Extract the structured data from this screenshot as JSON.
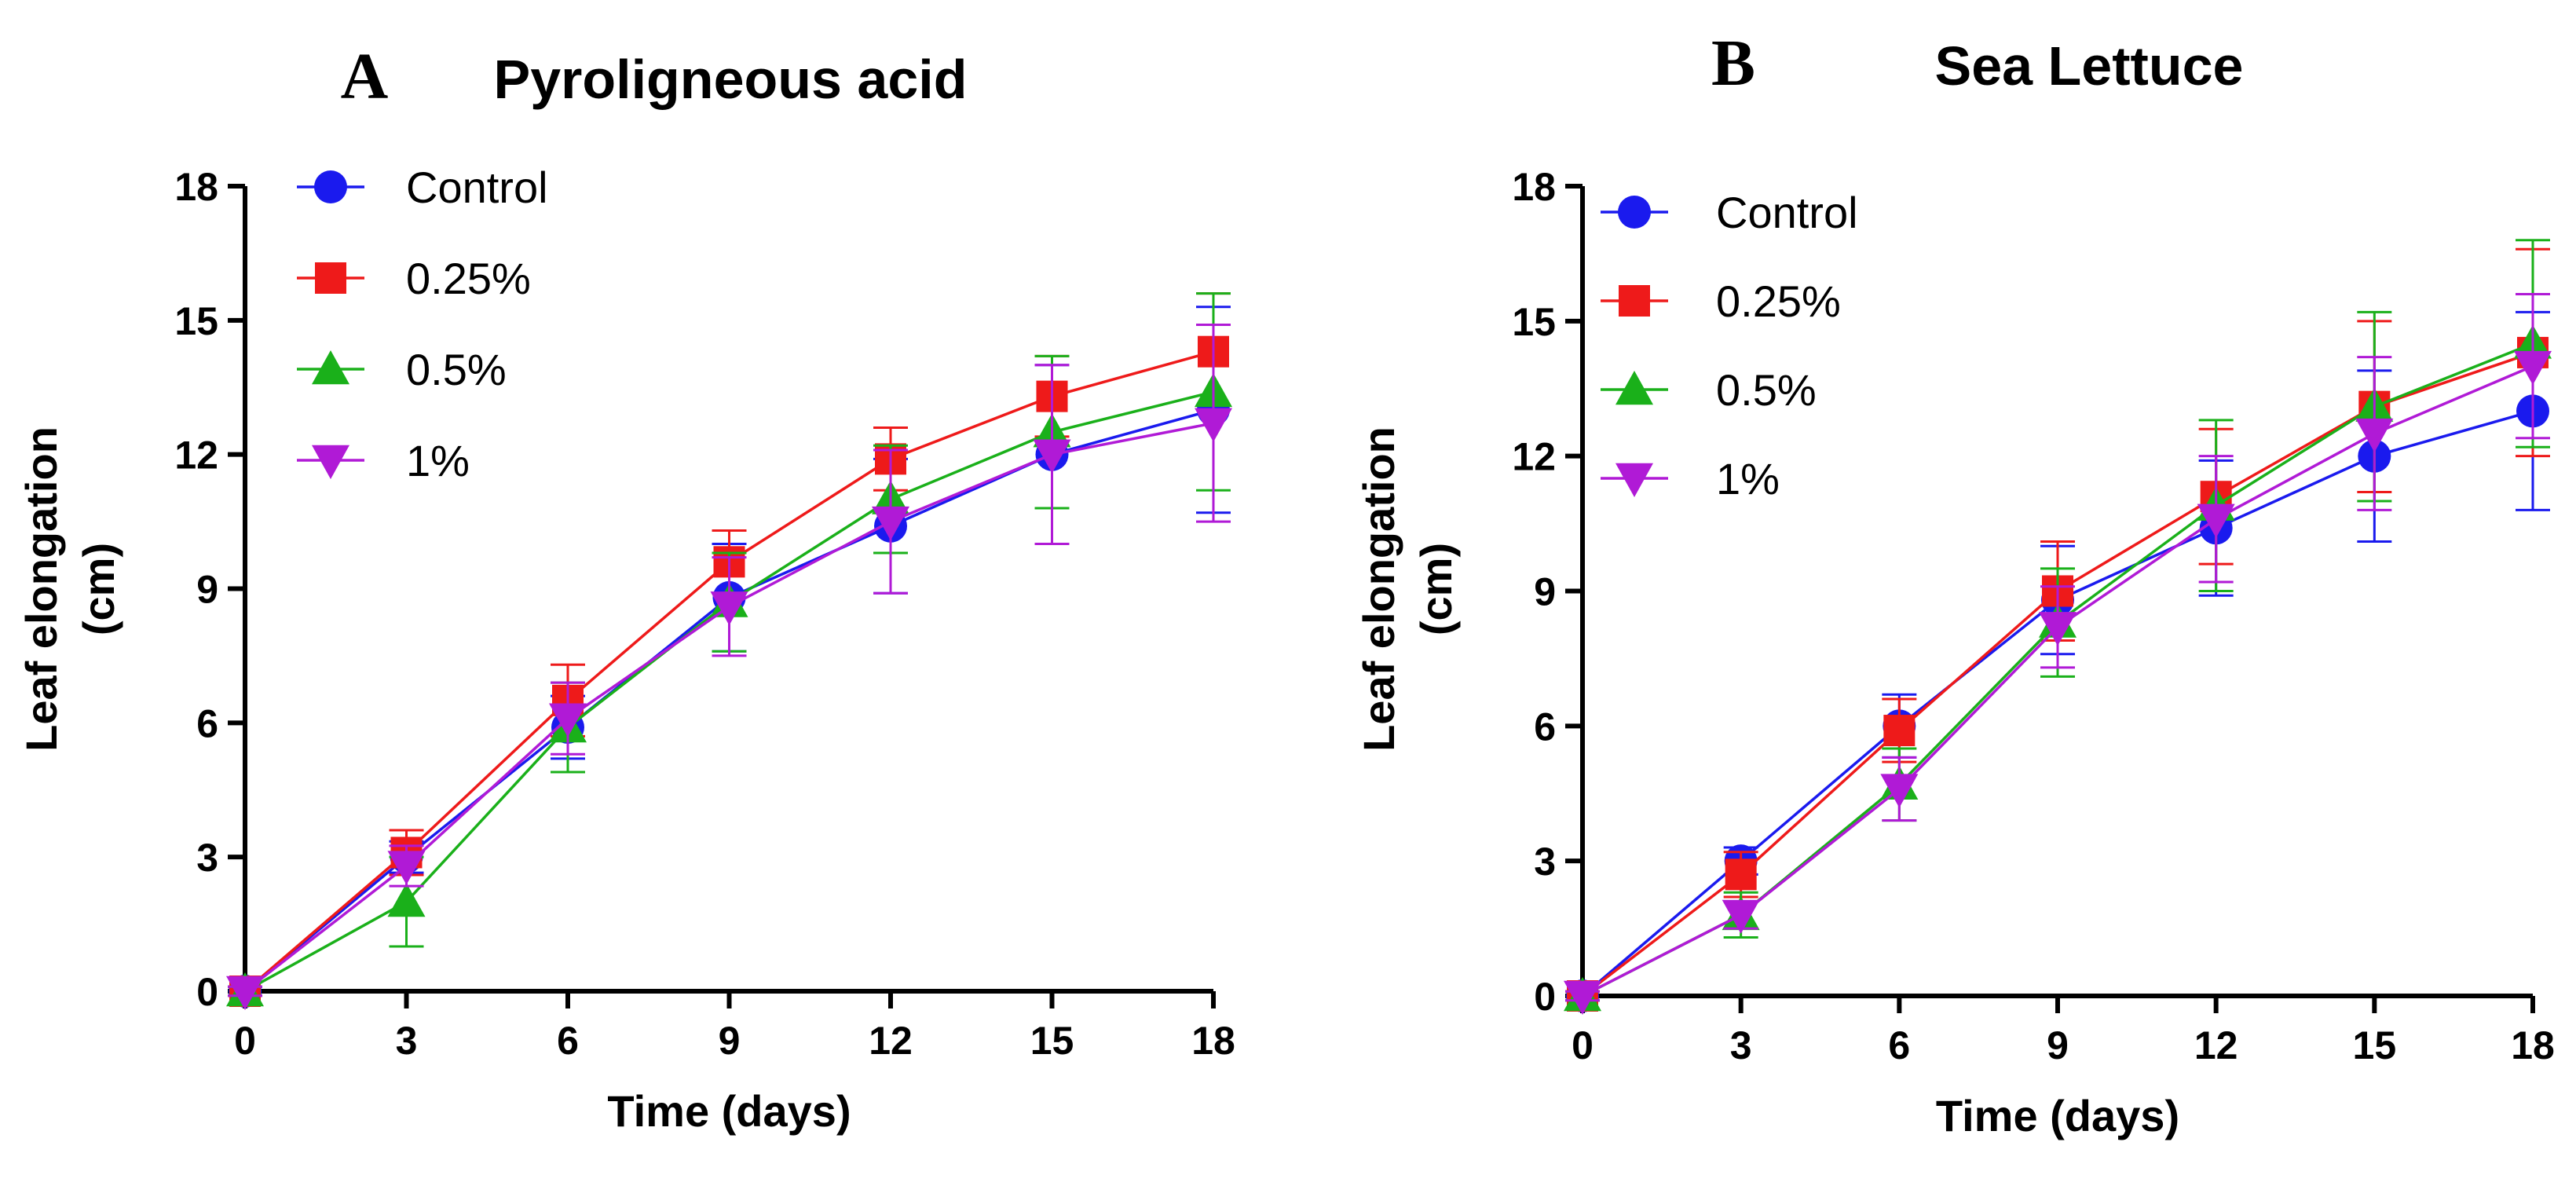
{
  "chart_data": [
    {
      "type": "line",
      "panel_letter": "A",
      "title": "Pyroligneous acid",
      "xlabel": "Time (days)",
      "ylabel_line1": "Leaf elongation",
      "ylabel_line2": "(cm)",
      "x": [
        0,
        3,
        6,
        9,
        12,
        15,
        18
      ],
      "x_tick_labels": [
        "0",
        "3",
        "6",
        "9",
        "12",
        "15",
        "18"
      ],
      "y_ticks": [
        0,
        3,
        6,
        9,
        12,
        15,
        18
      ],
      "y_tick_labels": [
        "0",
        "3",
        "6",
        "9",
        "12",
        "15",
        "18"
      ],
      "xlim": [
        0,
        18
      ],
      "ylim": [
        0,
        18
      ],
      "grid": false,
      "legend_position": "top-left",
      "series": [
        {
          "name": "Control",
          "marker": "circle",
          "color": "#1a1aee",
          "values": [
            0,
            3.0,
            5.9,
            8.8,
            10.4,
            12.0,
            13.0
          ],
          "errors": [
            0.1,
            0.35,
            0.7,
            1.2,
            1.5,
            2.0,
            2.3
          ]
        },
        {
          "name": "0.25%",
          "marker": "square",
          "color": "#ee1a1a",
          "values": [
            0,
            3.1,
            6.5,
            9.6,
            11.9,
            13.3,
            14.3
          ],
          "errors": [
            0.1,
            0.5,
            0.8,
            0.7,
            0.7,
            0.9,
            1.3
          ]
        },
        {
          "name": "0.5%",
          "marker": "triangle-up",
          "color": "#1ab01a",
          "values": [
            0,
            2.0,
            5.9,
            8.7,
            11.0,
            12.5,
            13.4
          ],
          "errors": [
            0.1,
            1.0,
            1.0,
            1.1,
            1.2,
            1.7,
            2.2
          ]
        },
        {
          "name": "1%",
          "marker": "triangle-down",
          "color": "#b01ad6",
          "values": [
            0,
            2.8,
            6.1,
            8.6,
            10.5,
            12.0,
            12.7
          ],
          "errors": [
            0.1,
            0.45,
            0.8,
            1.1,
            1.6,
            2.0,
            2.2
          ]
        }
      ]
    },
    {
      "type": "line",
      "panel_letter": "B",
      "title": "Sea Lettuce",
      "xlabel": "Time (days)",
      "ylabel_line1": "Leaf elongation",
      "ylabel_line2": "(cm)",
      "x": [
        0,
        3,
        6,
        9,
        12,
        15,
        18
      ],
      "x_tick_labels": [
        "0",
        "3",
        "6",
        "9",
        "12",
        "15",
        "18"
      ],
      "y_ticks": [
        0,
        3,
        6,
        9,
        12,
        15,
        18
      ],
      "y_tick_labels": [
        "0",
        "3",
        "6",
        "9",
        "12",
        "15",
        "18"
      ],
      "xlim": [
        0,
        18
      ],
      "ylim": [
        0,
        18
      ],
      "grid": false,
      "legend_position": "top-left",
      "series": [
        {
          "name": "Control",
          "marker": "circle",
          "color": "#1a1aee",
          "values": [
            0,
            3.0,
            6.0,
            8.8,
            10.4,
            12.0,
            13.0
          ],
          "errors": [
            0.1,
            0.3,
            0.7,
            1.2,
            1.5,
            1.9,
            2.2
          ]
        },
        {
          "name": "0.25%",
          "marker": "square",
          "color": "#ee1a1a",
          "values": [
            0,
            2.7,
            5.9,
            9.0,
            11.1,
            13.1,
            14.3
          ],
          "errors": [
            0.1,
            0.5,
            0.7,
            1.1,
            1.5,
            1.9,
            2.3
          ]
        },
        {
          "name": "0.5%",
          "marker": "triangle-up",
          "color": "#1ab01a",
          "values": [
            0,
            1.8,
            4.7,
            8.3,
            10.9,
            13.1,
            14.5
          ],
          "errors": [
            0.1,
            0.5,
            0.8,
            1.2,
            1.9,
            2.1,
            2.3
          ]
        },
        {
          "name": "1%",
          "marker": "triangle-down",
          "color": "#b01ad6",
          "values": [
            0,
            1.8,
            4.6,
            8.2,
            10.6,
            12.5,
            14.0
          ],
          "errors": [
            0.1,
            0.3,
            0.7,
            0.9,
            1.4,
            1.7,
            1.6
          ]
        }
      ]
    }
  ]
}
